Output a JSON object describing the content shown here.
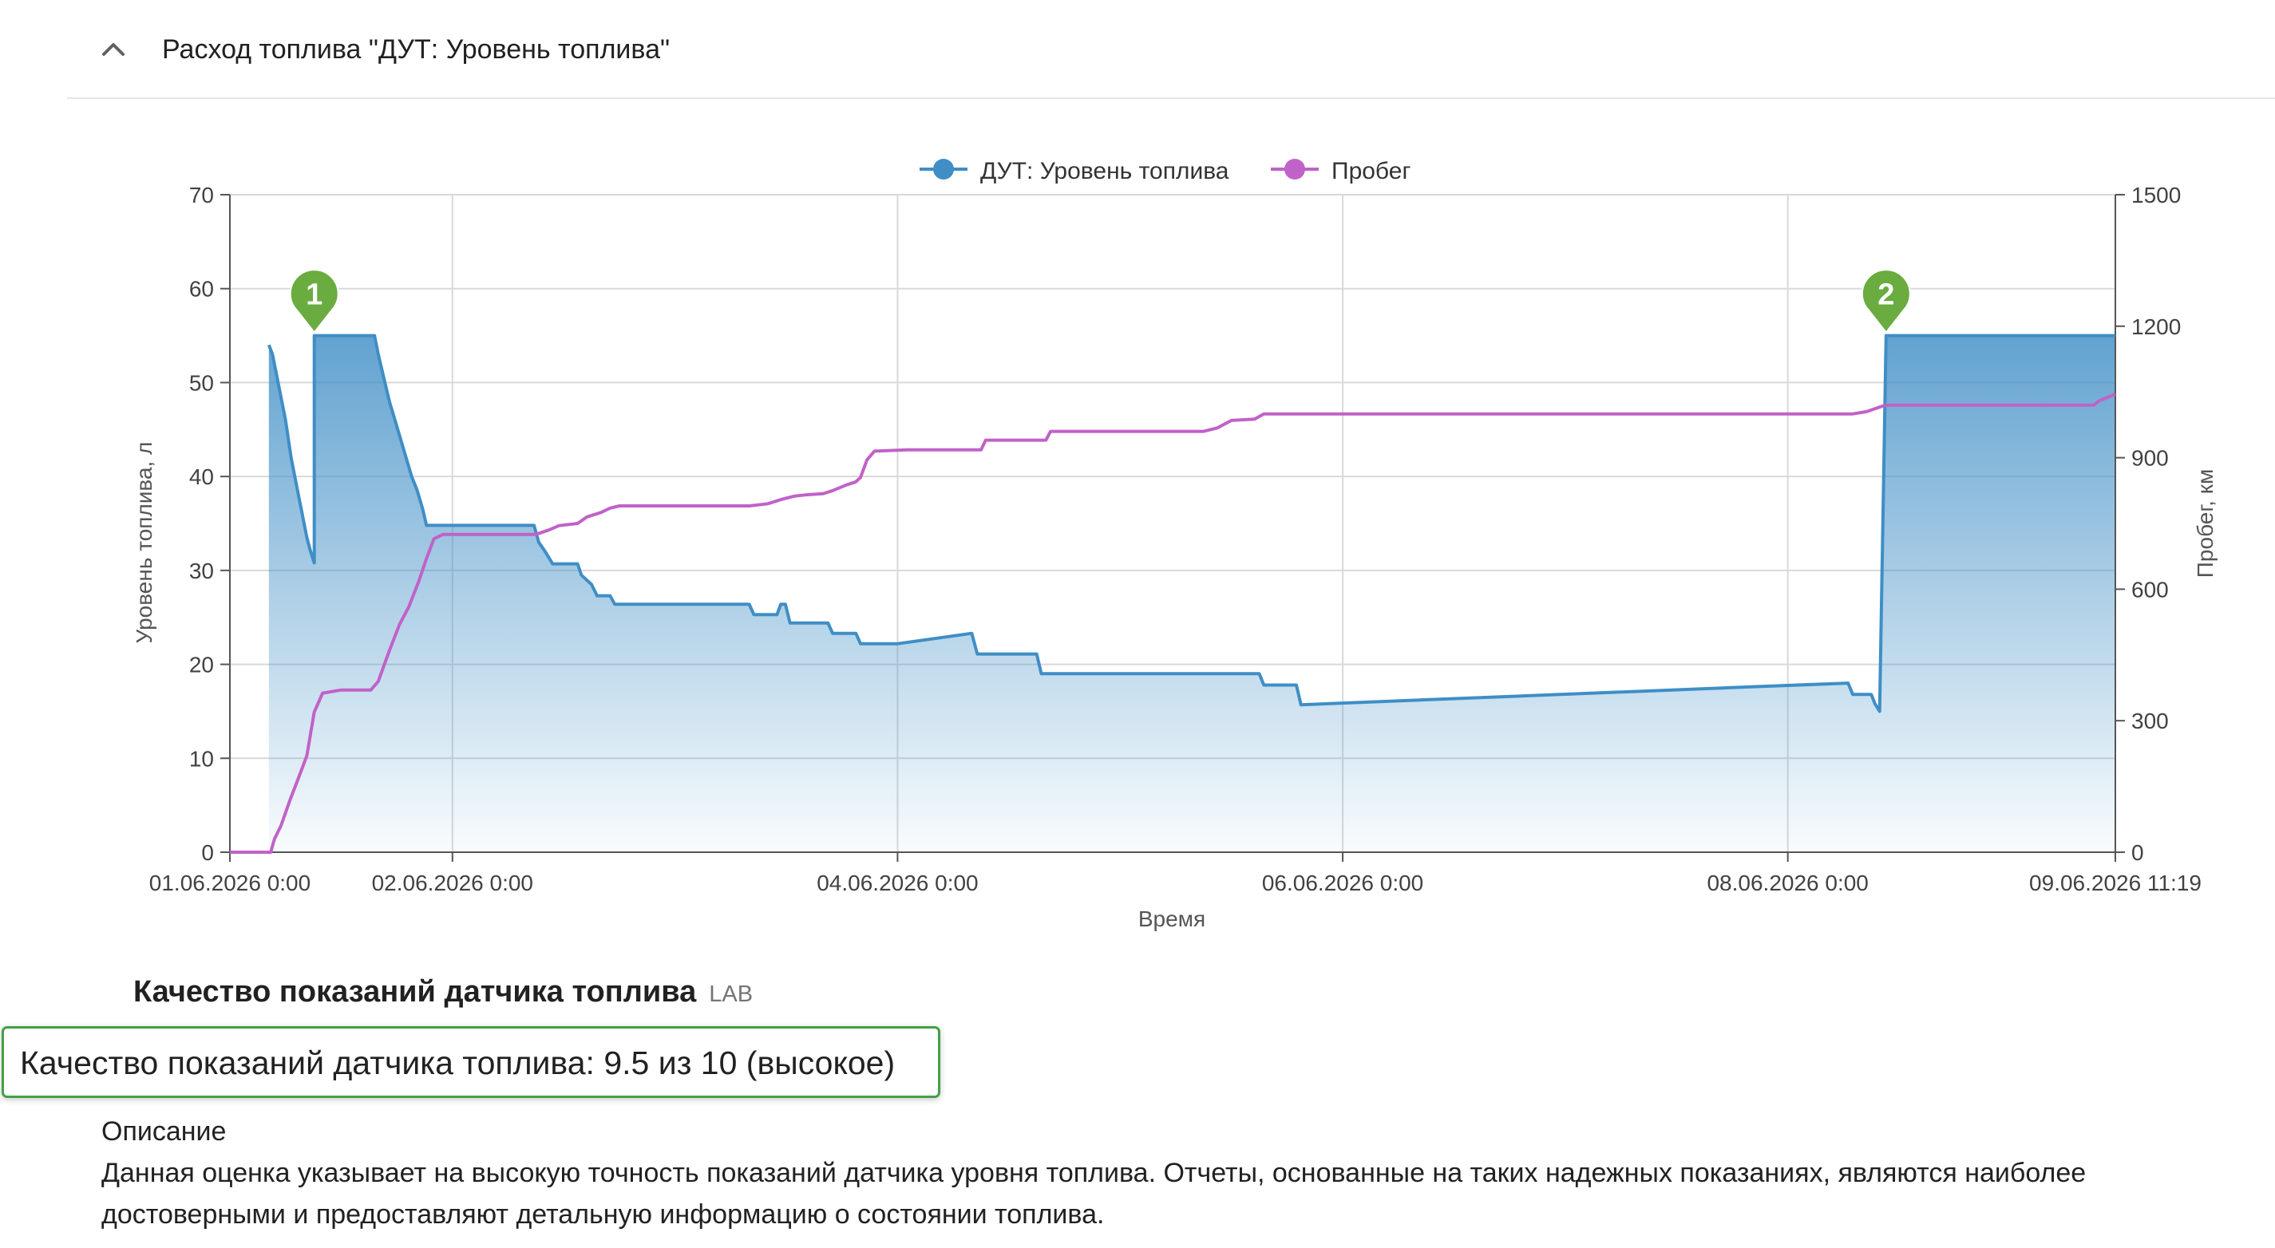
{
  "section": {
    "title": "Расход топлива \"ДУТ: Уровень топлива\""
  },
  "colors": {
    "fuel": "#3f8ec6",
    "mileage": "#c062c8",
    "marker": "#6aac3f",
    "grid": "#d9d9d9",
    "axis": "#555555",
    "text": "#424242",
    "result_border": "#43a047"
  },
  "icons": {
    "collapse": "chevron-up-icon",
    "marker": "map-pin-icon"
  },
  "chart_data": {
    "type": "line",
    "xlabel": "Время",
    "ylabel": "Уровень топлива, л",
    "y2label": "Пробег, км",
    "x_unit": "hours since 01.06.2026 0:00",
    "xlim": [
      0,
      203.32
    ],
    "ylim": [
      0,
      70
    ],
    "y2lim": [
      0,
      1500
    ],
    "y_ticks": [
      0,
      10,
      20,
      30,
      40,
      50,
      60,
      70
    ],
    "y2_ticks": [
      0,
      300,
      600,
      900,
      1200,
      1500
    ],
    "x_ticks": [
      {
        "value": 0,
        "label": "01.06.2026 0:00"
      },
      {
        "value": 24,
        "label": "02.06.2026 0:00"
      },
      {
        "value": 72,
        "label": "04.06.2026 0:00"
      },
      {
        "value": 120,
        "label": "06.06.2026 0:00"
      },
      {
        "value": 168,
        "label": "08.06.2026 0:00"
      },
      {
        "value": 203.32,
        "label": "09.06.2026 11:19"
      }
    ],
    "grid": true,
    "legend_position": "top-center",
    "series": [
      {
        "name": "ДУТ: Уровень топлива",
        "axis": "left",
        "style": "area-step",
        "points": [
          [
            4.2,
            54
          ],
          [
            4.6,
            53
          ],
          [
            5.2,
            50
          ],
          [
            6.0,
            46
          ],
          [
            6.6,
            42
          ],
          [
            7.2,
            39
          ],
          [
            7.8,
            36
          ],
          [
            8.3,
            33.5
          ],
          [
            8.7,
            32
          ],
          [
            9.1,
            30.8
          ],
          [
            9.1,
            55
          ],
          [
            15.6,
            55
          ],
          [
            16.0,
            53
          ],
          [
            16.6,
            50.5
          ],
          [
            17.2,
            48
          ],
          [
            17.8,
            46
          ],
          [
            18.4,
            44
          ],
          [
            19.0,
            42
          ],
          [
            19.6,
            40
          ],
          [
            20.2,
            38.5
          ],
          [
            20.8,
            36.5
          ],
          [
            21.2,
            34.8
          ],
          [
            32.8,
            34.8
          ],
          [
            33.3,
            33
          ],
          [
            34.0,
            32
          ],
          [
            34.8,
            30.7
          ],
          [
            37.5,
            30.7
          ],
          [
            37.9,
            29.5
          ],
          [
            39.0,
            28.5
          ],
          [
            39.6,
            27.3
          ],
          [
            41.0,
            27.3
          ],
          [
            41.5,
            26.4
          ],
          [
            56.0,
            26.4
          ],
          [
            56.5,
            25.3
          ],
          [
            59.0,
            25.3
          ],
          [
            59.4,
            26.4
          ],
          [
            59.9,
            26.4
          ],
          [
            60.4,
            24.4
          ],
          [
            64.5,
            24.4
          ],
          [
            65.0,
            23.3
          ],
          [
            67.5,
            23.3
          ],
          [
            68.0,
            22.2
          ],
          [
            72.0,
            22.2
          ],
          [
            80.0,
            23.3
          ],
          [
            80.6,
            21.1
          ],
          [
            87.0,
            21.1
          ],
          [
            87.5,
            19.0
          ],
          [
            111.0,
            19.0
          ],
          [
            111.5,
            17.8
          ],
          [
            115.0,
            17.8
          ],
          [
            115.5,
            15.7
          ],
          [
            164.0,
            17.6
          ],
          [
            174.5,
            18.0
          ],
          [
            175.0,
            16.8
          ],
          [
            177.0,
            16.8
          ],
          [
            177.4,
            15.8
          ],
          [
            177.9,
            15.0
          ],
          [
            178.6,
            55
          ],
          [
            203.32,
            55
          ]
        ]
      },
      {
        "name": "Пробег",
        "axis": "right",
        "style": "line-step",
        "points": [
          [
            0,
            0
          ],
          [
            4.4,
            0
          ],
          [
            4.8,
            30
          ],
          [
            5.5,
            60
          ],
          [
            6.5,
            120
          ],
          [
            7.5,
            175
          ],
          [
            8.3,
            220
          ],
          [
            9.1,
            320
          ],
          [
            10.0,
            363
          ],
          [
            12.0,
            370
          ],
          [
            15.2,
            370
          ],
          [
            16.0,
            390
          ],
          [
            17.2,
            460
          ],
          [
            18.3,
            520
          ],
          [
            19.3,
            560
          ],
          [
            20.4,
            620
          ],
          [
            21.2,
            670
          ],
          [
            22.0,
            715
          ],
          [
            23.0,
            725
          ],
          [
            33.0,
            725
          ],
          [
            34.4,
            735
          ],
          [
            35.5,
            745
          ],
          [
            37.5,
            750
          ],
          [
            38.5,
            765
          ],
          [
            40.0,
            775
          ],
          [
            41.0,
            785
          ],
          [
            42.0,
            790
          ],
          [
            56.0,
            790
          ],
          [
            58.0,
            795
          ],
          [
            59.5,
            805
          ],
          [
            60.8,
            812
          ],
          [
            62.0,
            815
          ],
          [
            64.0,
            818
          ],
          [
            65.0,
            825
          ],
          [
            66.5,
            838
          ],
          [
            67.5,
            845
          ],
          [
            68.0,
            855
          ],
          [
            68.7,
            895
          ],
          [
            69.5,
            915
          ],
          [
            73.0,
            918
          ],
          [
            81.0,
            918
          ],
          [
            81.5,
            940
          ],
          [
            88.0,
            940
          ],
          [
            88.5,
            960
          ],
          [
            105.0,
            960
          ],
          [
            106.5,
            968
          ],
          [
            108.0,
            985
          ],
          [
            110.5,
            988
          ],
          [
            111.5,
            1000
          ],
          [
            175.0,
            1000
          ],
          [
            176.5,
            1005
          ],
          [
            178.5,
            1020
          ],
          [
            201.0,
            1020
          ],
          [
            201.6,
            1030
          ],
          [
            203.32,
            1045
          ]
        ]
      }
    ],
    "markers": [
      {
        "label": "1",
        "x": 9.1,
        "y": 55
      },
      {
        "label": "2",
        "x": 178.6,
        "y": 55
      }
    ]
  },
  "quality": {
    "title": "Качество показаний датчика топлива",
    "badge": "LAB",
    "result": "Качество показаний датчика топлива: 9.5 из 10 (высокое)",
    "description_title": "Описание",
    "description": "Данная оценка указывает на высокую точность показаний датчика уровня топлива. Отчеты, основанные на таких надежных показаниях, являются наиболее достоверными и предоставляют детальную информацию о состоянии топлива."
  }
}
